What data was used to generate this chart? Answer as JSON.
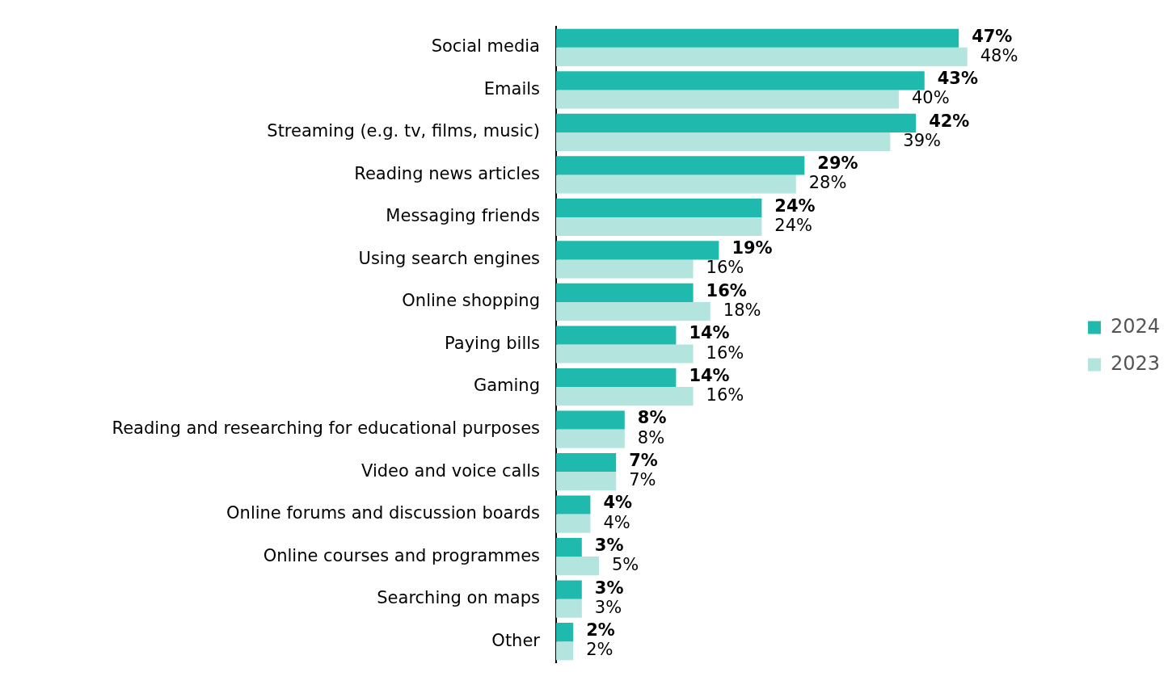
{
  "chart_data": {
    "type": "bar",
    "orientation": "horizontal",
    "categories": [
      "Social media",
      "Emails",
      "Streaming (e.g. tv, films, music)",
      "Reading news articles",
      "Messaging friends",
      "Using search engines",
      "Online shopping",
      "Paying bills",
      "Gaming",
      "Reading and researching for educational purposes",
      "Video and voice calls",
      "Online forums and discussion boards",
      "Online courses and programmes",
      "Searching on maps",
      "Other"
    ],
    "series": [
      {
        "name": "2024",
        "color": "#20b9ad",
        "values": [
          47,
          43,
          42,
          29,
          24,
          19,
          16,
          14,
          14,
          8,
          7,
          4,
          3,
          3,
          2
        ],
        "value_labels": [
          "47%",
          "43%",
          "42%",
          "29%",
          "24%",
          "19%",
          "16%",
          "14%",
          "14%",
          "8%",
          "7%",
          "4%",
          "3%",
          "3%",
          "2%"
        ]
      },
      {
        "name": "2023",
        "color": "#b4e4de",
        "values": [
          48,
          40,
          39,
          28,
          24,
          16,
          18,
          16,
          16,
          8,
          7,
          4,
          5,
          3,
          2
        ],
        "value_labels": [
          "48%",
          "40%",
          "39%",
          "28%",
          "24%",
          "16%",
          "18%",
          "16%",
          "16%",
          "8%",
          "7%",
          "4%",
          "5%",
          "3%",
          "2%"
        ]
      }
    ],
    "tick_labels": "y",
    "grid": false,
    "legend": "right"
  }
}
